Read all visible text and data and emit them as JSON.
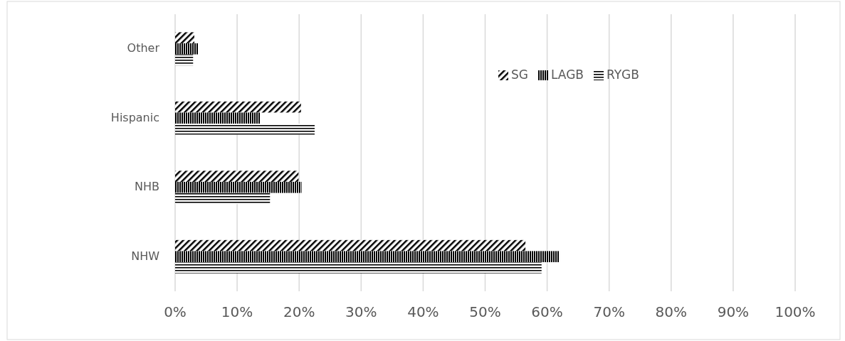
{
  "chart_data": {
    "type": "bar",
    "orientation": "horizontal",
    "categories": [
      "Other",
      "Hispanic",
      "NHB",
      "NHW"
    ],
    "series": [
      {
        "name": "SG",
        "color": "#000000",
        "values": [
          3.1,
          20.3,
          19.9,
          56.5
        ]
      },
      {
        "name": "LAGB",
        "color": "#000000",
        "values": [
          3.7,
          13.7,
          20.4,
          62.0
        ]
      },
      {
        "name": "RYGB",
        "color": "#000000",
        "values": [
          2.9,
          22.5,
          15.3,
          59.1
        ]
      }
    ],
    "xlim": [
      0,
      100
    ],
    "xticks": [
      {
        "value": 0,
        "label": "0%"
      },
      {
        "value": 10,
        "label": "10%"
      },
      {
        "value": 20,
        "label": "20%"
      },
      {
        "value": 30,
        "label": "30%"
      },
      {
        "value": 40,
        "label": "40%"
      },
      {
        "value": 50,
        "label": "50%"
      },
      {
        "value": 60,
        "label": "60%"
      },
      {
        "value": 70,
        "label": "70%"
      },
      {
        "value": 80,
        "label": "80%"
      },
      {
        "value": 90,
        "label": "90%"
      },
      {
        "value": 100,
        "label": "100%"
      }
    ],
    "grid": "x",
    "legend": "top right"
  }
}
